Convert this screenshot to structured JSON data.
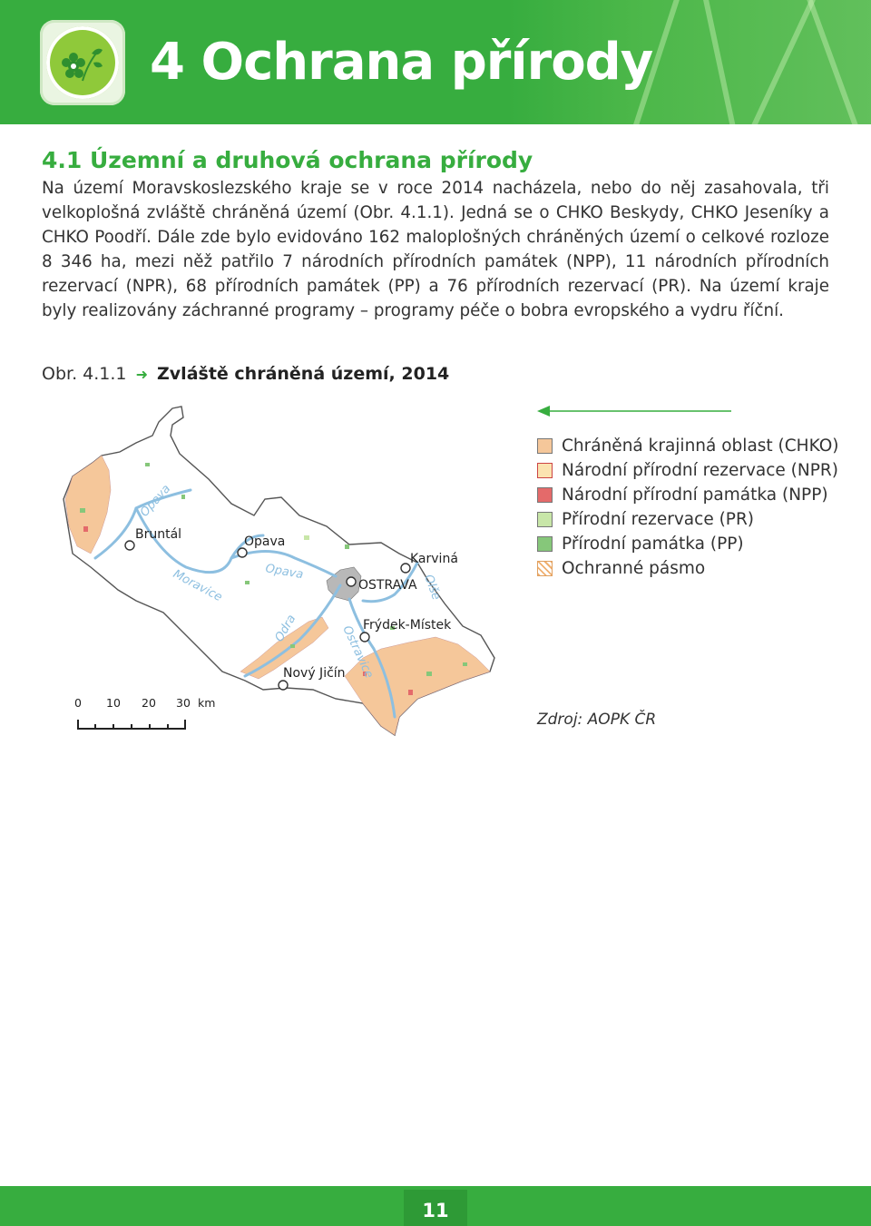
{
  "header": {
    "title": "4 Ochrana přírody"
  },
  "section": {
    "title": "4.1 Územní a druhová ochrana přírody",
    "paragraph": "Na území Moravskoslezského kraje se v roce 2014 nacházela, nebo do něj zasahovala, tři velkoplošná zvláště chráněná území (Obr. 4.1.1). Jedná se o CHKO Beskydy, CHKO Jeseníky a CHKO Poodří. Dále zde bylo evidováno 162 maloplošných chráněných území o celkové rozloze 8 346 ha, mezi něž patřilo 7 národních přírodních památek (NPP), 11 národních přírodních rezervací (NPR), 68 přírodních památek (PP) a 76 přírodních rezervací (PR). Na území kraje byly realizovány záchranné programy – programy péče o bobra evropského a vydru říční."
  },
  "figure": {
    "number": "Obr. 4.1.1",
    "title": "Zvláště chráněná území, 2014",
    "source": "Zdroj: AOPK ČR"
  },
  "map": {
    "cities": [
      "Bruntál",
      "Opava",
      "Karviná",
      "OSTRAVA",
      "Frýdek-Místek",
      "Nový Jičín"
    ],
    "rivers": [
      "Opava",
      "Moravice",
      "Opava",
      "Odra",
      "Ostravice",
      "Olše"
    ],
    "scale": {
      "ticks": [
        "0",
        "10",
        "20",
        "30"
      ],
      "unit": "km"
    }
  },
  "legend": [
    {
      "label": "Chráněná krajinná oblast (CHKO)",
      "color": "#f5c79a"
    },
    {
      "label": "Národní přírodní rezervace (NPR)",
      "color": "#fbe3b0"
    },
    {
      "label": "Národní přírodní památka (NPP)",
      "color": "#e46a6a"
    },
    {
      "label": "Přírodní rezervace (PR)",
      "color": "#c8e6a8"
    },
    {
      "label": "Přírodní památka (PP)",
      "color": "#86c77a"
    },
    {
      "label": "Ochranné pásmo",
      "color": "#f0b070"
    }
  ],
  "colors": {
    "accent": "#37ad3f",
    "river": "#8dbfe0",
    "city_area": "#b8b8b8"
  },
  "footer": {
    "page_number": "11"
  }
}
